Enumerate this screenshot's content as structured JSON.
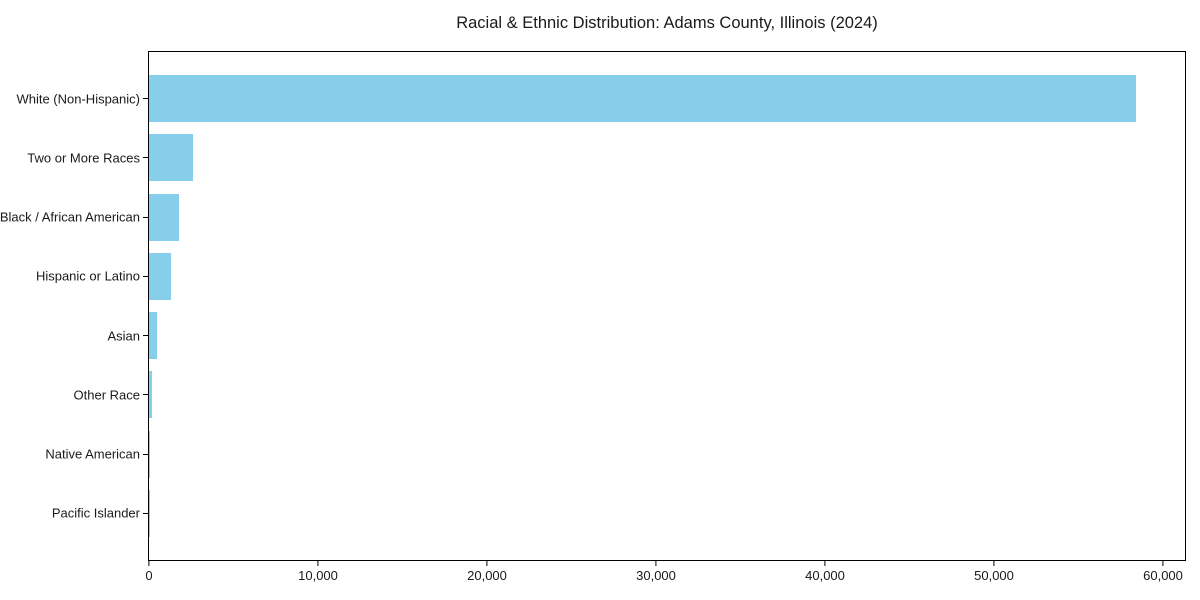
{
  "chart_data": {
    "type": "bar",
    "orientation": "horizontal",
    "title": "Racial & Ethnic Distribution: Adams County, Illinois (2024)",
    "categories": [
      "White (Non-Hispanic)",
      "Two or More Races",
      "Black / African American",
      "Hispanic or Latino",
      "Asian",
      "Other Race",
      "Native American",
      "Pacific Islander"
    ],
    "values": [
      58400,
      2600,
      1800,
      1300,
      500,
      150,
      40,
      20
    ],
    "xlabel": "",
    "ylabel": "",
    "xlim": [
      0,
      61300
    ],
    "x_ticks": [
      0,
      10000,
      20000,
      30000,
      40000,
      50000,
      60000
    ],
    "x_tick_labels": [
      "0",
      "10,000",
      "20,000",
      "30,000",
      "40,000",
      "50,000",
      "60,000"
    ],
    "grid": false,
    "legend": null,
    "bar_color": "#87CEEB",
    "axis_color": "#000000",
    "background_color": "#FFFFFF"
  }
}
